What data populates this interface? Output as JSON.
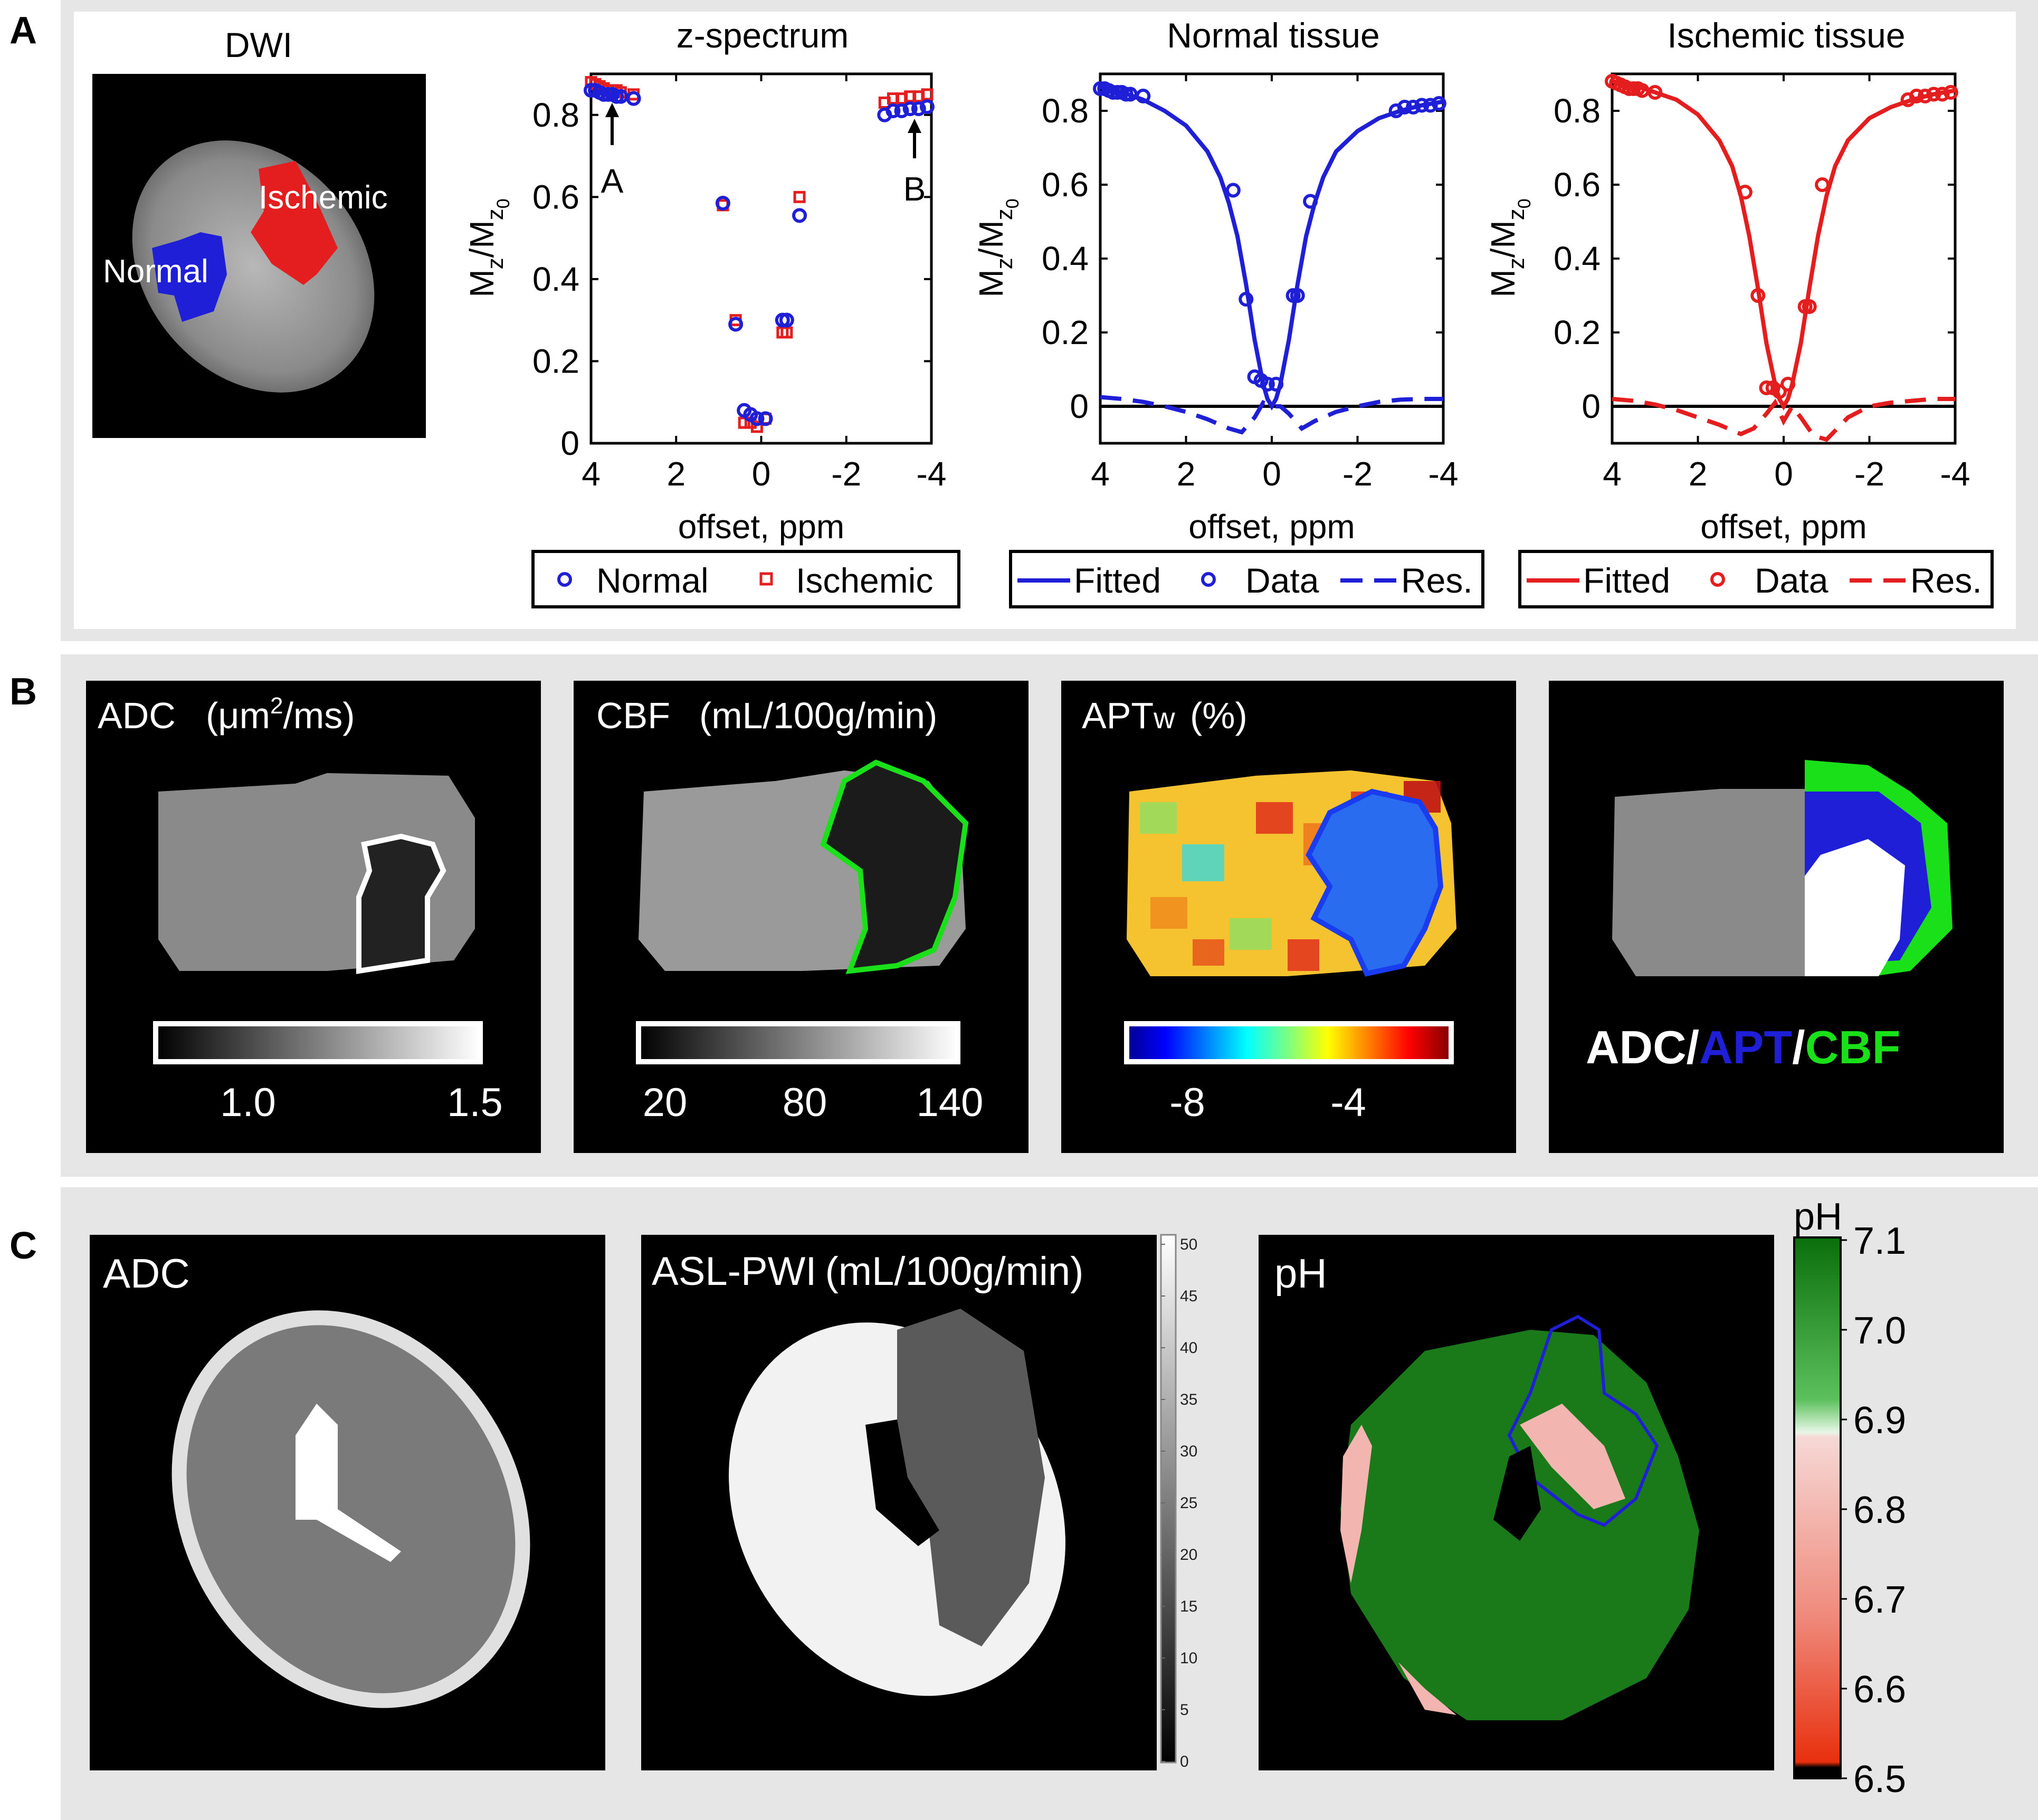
{
  "panels": {
    "A": {
      "letter": "A",
      "dwi": {
        "title": "DWI",
        "normal_label": "Normal",
        "ischemic_label": "Ischemic"
      },
      "zspec": {
        "title": "z-spectrum",
        "arrow_a": "A",
        "arrow_b": "B",
        "legend": [
          "Normal",
          "Ischemic"
        ]
      },
      "normal_plot": {
        "title": "Normal tissue",
        "legend": [
          "Fitted",
          "Data",
          "Res."
        ]
      },
      "ischemic_plot": {
        "title": "Ischemic tissue",
        "legend": [
          "Fitted",
          "Data",
          "Res."
        ]
      },
      "xlabel": "offset, ppm",
      "ylabel": "Mz/Mz0",
      "ylabel_main": "M",
      "ylabel_sub1": "z",
      "ylabel_slash": "/M",
      "ylabel_sub2": "z",
      "ylabel_sub3": "0",
      "xticks": [
        "4",
        "2",
        "0",
        "-2",
        "-4"
      ],
      "yticks": [
        "0",
        "0.2",
        "0.4",
        "0.6",
        "0.8"
      ]
    },
    "B": {
      "letter": "B",
      "adc": {
        "title": "ADC",
        "unit_pre": "(μm",
        "unit_sup": "2",
        "unit_post": "/ms)",
        "ticks": [
          "1.0",
          "1.5"
        ]
      },
      "cbf": {
        "title": "CBF",
        "unit": "(mL/100g/min)",
        "ticks": [
          "20",
          "80",
          "140"
        ]
      },
      "aptw": {
        "title": "APTw",
        "title_main": "APT",
        "title_sub": "w",
        "unit": "(%)",
        "ticks": [
          "-8",
          "-4"
        ]
      },
      "overlay": {
        "label_adc": "ADC",
        "sep1": "/",
        "label_apt": "APT",
        "sep2": "/",
        "label_cbf": "CBF"
      }
    },
    "C": {
      "letter": "C",
      "adc": {
        "title": "ADC"
      },
      "asl": {
        "title": "ASL-PWI",
        "unit": "(mL/100g/min)",
        "ticks": [
          "0",
          "5",
          "10",
          "15",
          "20",
          "25",
          "30",
          "35",
          "40",
          "45",
          "50"
        ]
      },
      "ph": {
        "title": "pH",
        "cb_title": "pH",
        "ticks": [
          "6.5",
          "6.6",
          "6.7",
          "6.8",
          "6.9",
          "7.0",
          "7.1"
        ]
      }
    }
  },
  "colors": {
    "normal": "#1f1fd8",
    "ischemic": "#e41e1e",
    "cbf_green": "#19e019",
    "ph_green": "#1a7a1a",
    "ph_pink": "#f2b5b0"
  },
  "chart_data": [
    {
      "type": "scatter",
      "title": "z-spectrum",
      "xlabel": "offset, ppm",
      "ylabel": "Mz/Mz0",
      "xlim": [
        4,
        -4
      ],
      "ylim": [
        0,
        0.9
      ],
      "series": [
        {
          "name": "Normal",
          "x": [
            4.0,
            3.9,
            3.8,
            3.7,
            3.6,
            3.5,
            3.4,
            3.3,
            3.0,
            0.9,
            0.6,
            0.4,
            0.25,
            0.1,
            -0.1,
            -0.5,
            -0.6,
            -0.9,
            -2.9,
            -3.1,
            -3.3,
            -3.5,
            -3.7,
            -3.9
          ],
          "y": [
            0.86,
            0.86,
            0.855,
            0.85,
            0.85,
            0.85,
            0.845,
            0.845,
            0.84,
            0.585,
            0.29,
            0.08,
            0.07,
            0.06,
            0.06,
            0.3,
            0.3,
            0.555,
            0.8,
            0.81,
            0.81,
            0.815,
            0.815,
            0.82
          ]
        },
        {
          "name": "Ischemic",
          "x": [
            4.0,
            3.9,
            3.8,
            3.7,
            3.6,
            3.5,
            3.4,
            3.3,
            3.0,
            0.9,
            0.6,
            0.4,
            0.25,
            0.1,
            -0.1,
            -0.5,
            -0.6,
            -0.9,
            -2.9,
            -3.1,
            -3.3,
            -3.5,
            -3.7,
            -3.9
          ],
          "y": [
            0.88,
            0.875,
            0.87,
            0.865,
            0.86,
            0.86,
            0.86,
            0.855,
            0.85,
            0.58,
            0.3,
            0.05,
            0.05,
            0.04,
            0.06,
            0.27,
            0.27,
            0.6,
            0.83,
            0.84,
            0.84,
            0.845,
            0.845,
            0.85
          ]
        }
      ]
    },
    {
      "type": "line",
      "title": "Normal tissue",
      "xlabel": "offset, ppm",
      "ylabel": "Mz/Mz0",
      "xlim": [
        4,
        -4
      ],
      "ylim": [
        -0.1,
        0.9
      ],
      "series": [
        {
          "name": "Fitted",
          "x": [
            4.0,
            3.5,
            3.0,
            2.5,
            2.0,
            1.5,
            1.2,
            1.0,
            0.8,
            0.6,
            0.4,
            0.2,
            0.1,
            0.0,
            -0.1,
            -0.2,
            -0.4,
            -0.6,
            -0.8,
            -1.0,
            -1.2,
            -1.5,
            -2.0,
            -2.5,
            -3.0,
            -3.5,
            -4.0
          ],
          "y": [
            0.865,
            0.85,
            0.83,
            0.8,
            0.76,
            0.69,
            0.62,
            0.55,
            0.46,
            0.33,
            0.18,
            0.06,
            0.02,
            0.0,
            0.02,
            0.06,
            0.18,
            0.33,
            0.46,
            0.55,
            0.62,
            0.69,
            0.745,
            0.78,
            0.8,
            0.815,
            0.825
          ]
        },
        {
          "name": "Data",
          "x": [
            4.0,
            3.9,
            3.8,
            3.7,
            3.6,
            3.5,
            3.4,
            3.3,
            3.0,
            0.9,
            0.6,
            0.4,
            0.25,
            0.1,
            -0.1,
            -0.5,
            -0.6,
            -0.9,
            -2.9,
            -3.1,
            -3.3,
            -3.5,
            -3.7,
            -3.9
          ],
          "y": [
            0.86,
            0.86,
            0.855,
            0.85,
            0.85,
            0.85,
            0.845,
            0.845,
            0.84,
            0.585,
            0.29,
            0.08,
            0.07,
            0.06,
            0.06,
            0.3,
            0.3,
            0.555,
            0.8,
            0.81,
            0.81,
            0.815,
            0.815,
            0.82
          ]
        },
        {
          "name": "Res.",
          "x": [
            4.0,
            3.5,
            3.0,
            2.5,
            2.0,
            1.5,
            1.0,
            0.7,
            0.4,
            0.2,
            0.0,
            -0.2,
            -0.4,
            -0.7,
            -1.0,
            -1.5,
            -2.0,
            -2.5,
            -3.0,
            -3.5,
            -4.0
          ],
          "y": [
            0.025,
            0.02,
            0.012,
            0.0,
            -0.015,
            -0.035,
            -0.06,
            -0.07,
            -0.03,
            0.01,
            0.0,
            0.0,
            -0.02,
            -0.06,
            -0.04,
            -0.015,
            0.0,
            0.012,
            0.018,
            0.02,
            0.02
          ]
        }
      ]
    },
    {
      "type": "line",
      "title": "Ischemic tissue",
      "xlabel": "offset, ppm",
      "ylabel": "Mz/Mz0",
      "xlim": [
        4,
        -4
      ],
      "ylim": [
        -0.1,
        0.9
      ],
      "series": [
        {
          "name": "Fitted",
          "x": [
            4.0,
            3.5,
            3.0,
            2.5,
            2.0,
            1.5,
            1.2,
            1.0,
            0.8,
            0.6,
            0.4,
            0.2,
            0.1,
            0.0,
            -0.1,
            -0.2,
            -0.4,
            -0.6,
            -0.8,
            -1.0,
            -1.2,
            -1.5,
            -2.0,
            -2.5,
            -3.0,
            -3.5,
            -4.0
          ],
          "y": [
            0.88,
            0.87,
            0.85,
            0.83,
            0.79,
            0.72,
            0.65,
            0.57,
            0.46,
            0.32,
            0.17,
            0.06,
            0.02,
            0.0,
            0.02,
            0.06,
            0.17,
            0.32,
            0.46,
            0.57,
            0.65,
            0.72,
            0.78,
            0.81,
            0.83,
            0.845,
            0.855
          ]
        },
        {
          "name": "Data",
          "x": [
            4.0,
            3.9,
            3.8,
            3.7,
            3.6,
            3.5,
            3.4,
            3.3,
            3.0,
            0.9,
            0.6,
            0.4,
            0.25,
            0.1,
            -0.1,
            -0.5,
            -0.6,
            -0.9,
            -2.9,
            -3.1,
            -3.3,
            -3.5,
            -3.7,
            -3.9
          ],
          "y": [
            0.88,
            0.875,
            0.87,
            0.865,
            0.86,
            0.86,
            0.86,
            0.855,
            0.85,
            0.58,
            0.3,
            0.05,
            0.05,
            0.04,
            0.06,
            0.27,
            0.27,
            0.6,
            0.83,
            0.84,
            0.84,
            0.845,
            0.845,
            0.85
          ]
        },
        {
          "name": "Res.",
          "x": [
            4.0,
            3.5,
            3.0,
            2.5,
            2.0,
            1.5,
            1.0,
            0.7,
            0.4,
            0.2,
            0.0,
            -0.2,
            -0.4,
            -0.7,
            -1.0,
            -1.5,
            -2.0,
            -2.5,
            -3.0,
            -3.5,
            -4.0
          ],
          "y": [
            0.02,
            0.015,
            0.005,
            -0.01,
            -0.03,
            -0.05,
            -0.075,
            -0.06,
            -0.02,
            0.01,
            -0.04,
            0.0,
            -0.03,
            -0.08,
            -0.09,
            -0.03,
            0.0,
            0.01,
            0.015,
            0.02,
            0.02
          ]
        }
      ]
    }
  ]
}
